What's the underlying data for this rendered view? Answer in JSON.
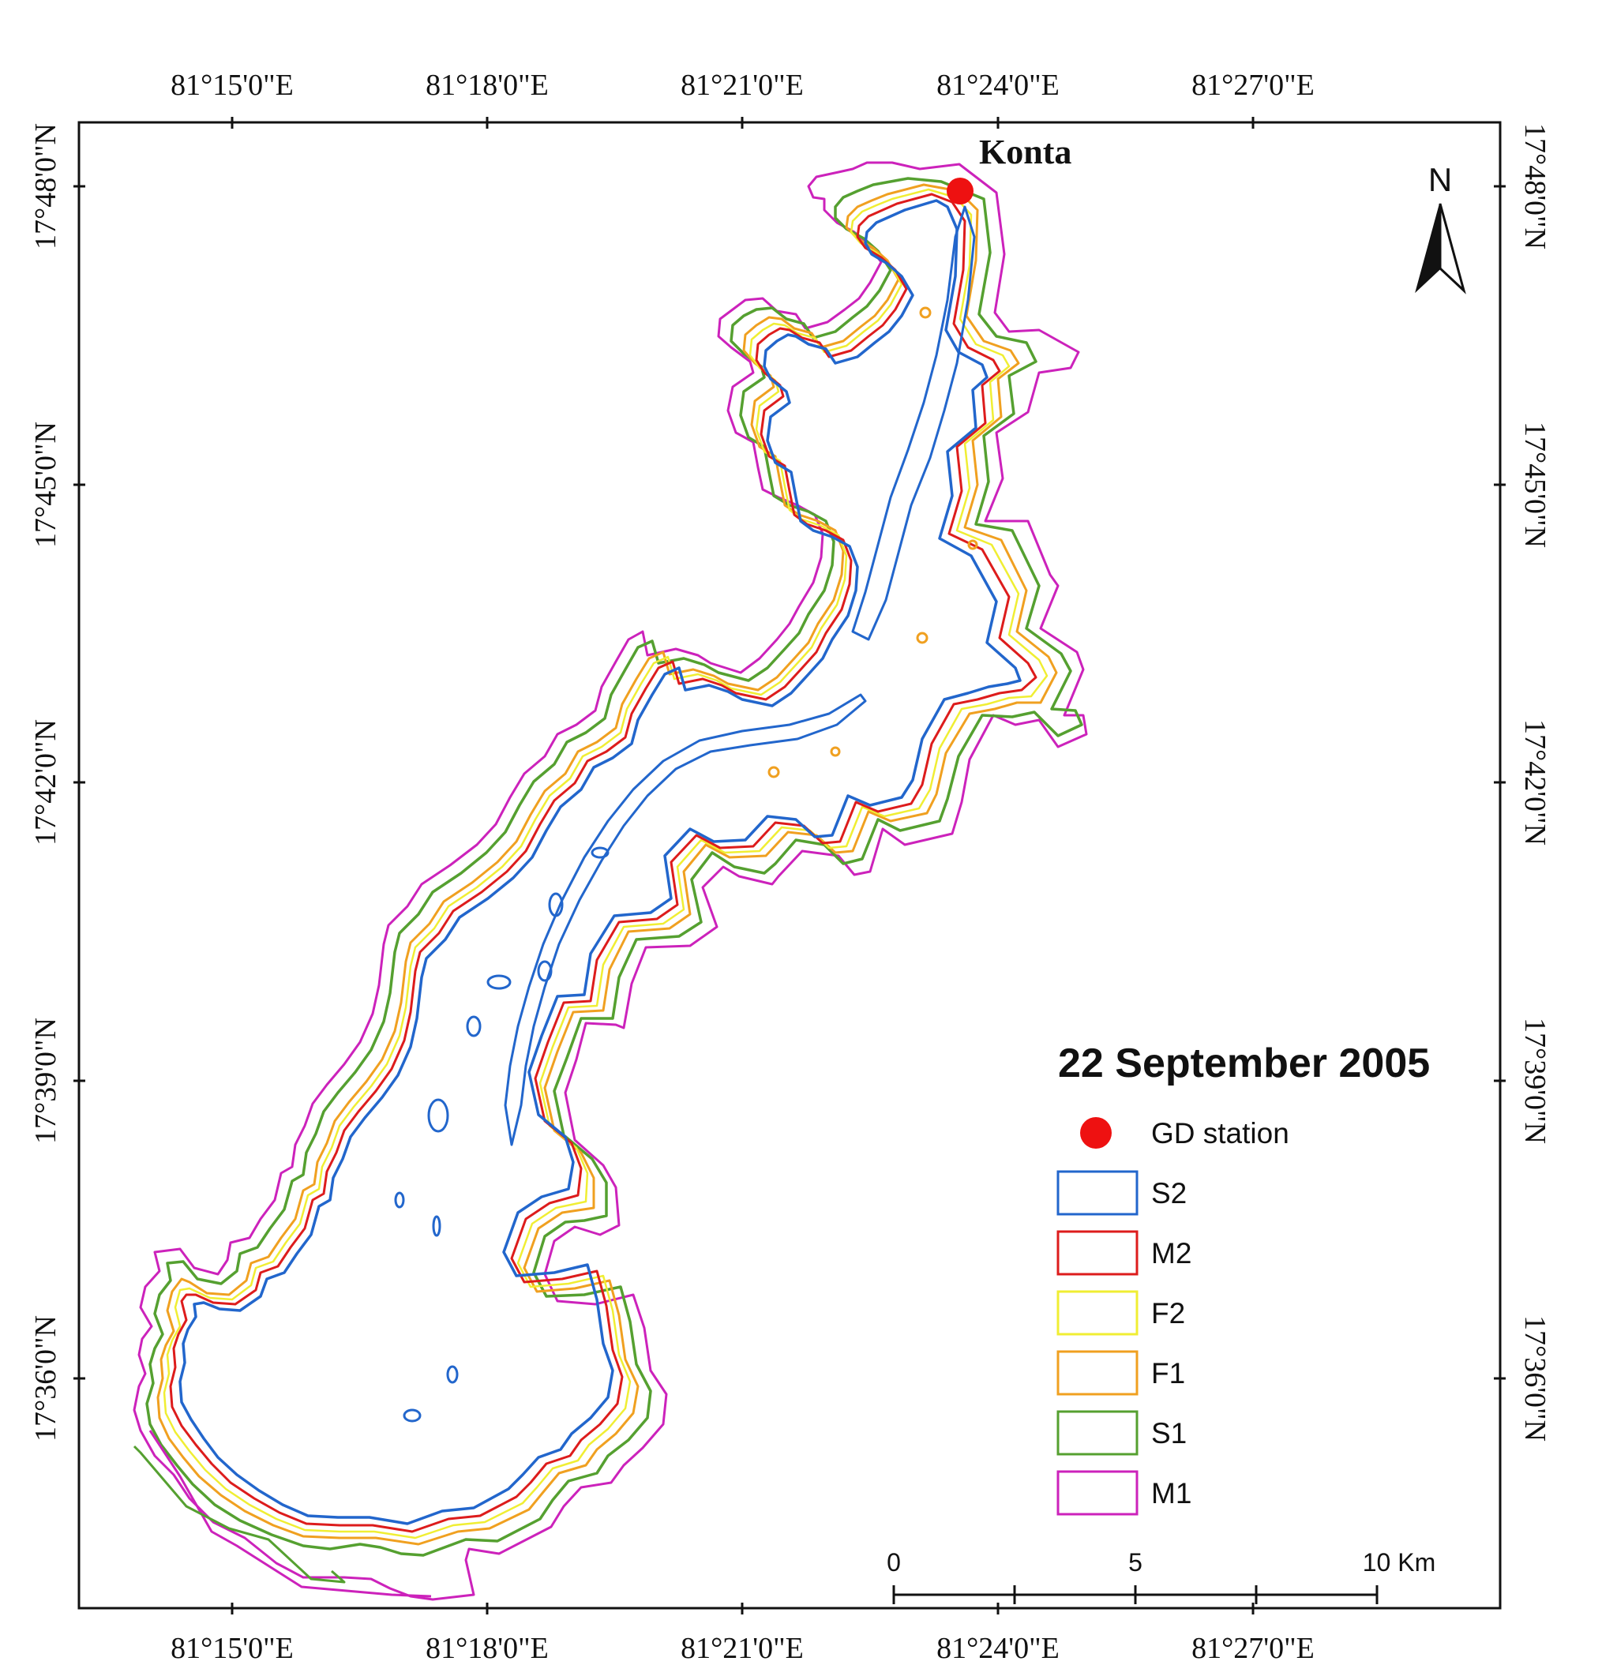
{
  "map": {
    "title": "22 September 2005",
    "place_label": "Konta",
    "north_arrow_label": "N",
    "longitude_ticks": [
      "81°15'0\"E",
      "81°18'0\"E",
      "81°21'0\"E",
      "81°24'0\"E",
      "81°27'0\"E"
    ],
    "latitude_ticks": [
      "17°48'0\"N",
      "17°45'0\"N",
      "17°42'0\"N",
      "17°39'0\"N",
      "17°36'0\"N"
    ],
    "scale_bar": {
      "labels": [
        "0",
        "5",
        "10 Km"
      ],
      "length_km": 10
    }
  },
  "legend": {
    "items": [
      {
        "id": "gd-station",
        "label": "GD station",
        "symbol": "point",
        "color": "#ee1111"
      },
      {
        "id": "s2",
        "label": "S2",
        "symbol": "polygon",
        "color": "#2266cc"
      },
      {
        "id": "m2",
        "label": "M2",
        "symbol": "polygon",
        "color": "#dd1c1c"
      },
      {
        "id": "f2",
        "label": "F2",
        "symbol": "polygon",
        "color": "#f0ee33"
      },
      {
        "id": "f1",
        "label": "F1",
        "symbol": "polygon",
        "color": "#f0a020"
      },
      {
        "id": "s1",
        "label": "S1",
        "symbol": "polygon",
        "color": "#55a030"
      },
      {
        "id": "m1",
        "label": "M1",
        "symbol": "polygon",
        "color": "#cc22bb"
      }
    ]
  }
}
